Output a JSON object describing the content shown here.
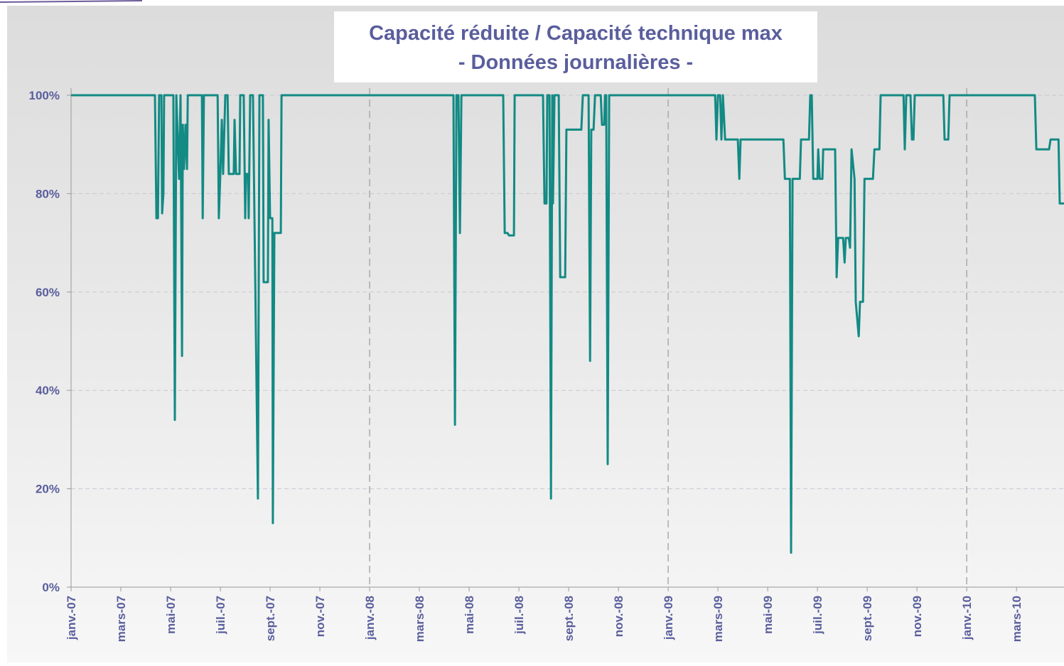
{
  "chart_data": {
    "type": "line",
    "title": [
      "Capacité réduite / Capacité technique max",
      "- Données journalières  -"
    ],
    "x": [
      0,
      3.37,
      3.43,
      3.49,
      3.54,
      3.63,
      3.66,
      3.71,
      3.74,
      4.11,
      4.17,
      4.23,
      4.34,
      4.4,
      4.46,
      4.49,
      4.54,
      4.6,
      4.66,
      4.69,
      5.26,
      5.29,
      5.34,
      5.89,
      5.94,
      6,
      6.06,
      6.11,
      6.2,
      6.29,
      6.34,
      6.54,
      6.57,
      6.63,
      6.77,
      6.8,
      6.94,
      7,
      7.03,
      7.11,
      7.14,
      7.2,
      7.31,
      7.51,
      7.57,
      7.71,
      7.74,
      7.91,
      7.94,
      8,
      8.09,
      8.11,
      8.17,
      8.43,
      8.46,
      15.37,
      15.43,
      15.49,
      15.57,
      15.63,
      15.69,
      17.37,
      17.43,
      17.54,
      17.6,
      17.8,
      17.83,
      18.97,
      19.03,
      19.11,
      19.14,
      19.23,
      19.29,
      19.34,
      19.37,
      19.43,
      19.6,
      19.66,
      19.86,
      19.91,
      20.51,
      20.57,
      20.8,
      20.86,
      20.91,
      21,
      21.06,
      21.29,
      21.34,
      21.43,
      21.46,
      21.51,
      21.57,
      21.63,
      25.89,
      25.94,
      26,
      26.09,
      26.14,
      26.2,
      26.29,
      26.8,
      26.86,
      26.91,
      28.63,
      28.69,
      28.89,
      28.94,
      29,
      29.29,
      29.34,
      29.66,
      29.71,
      29.77,
      29.83,
      30,
      30.03,
      30.09,
      30.2,
      30.23,
      30.71,
      30.77,
      30.83,
      31.03,
      31.09,
      31.14,
      31.26,
      31.31,
      31.37,
      31.49,
      31.54,
      31.66,
      31.71,
      31.83,
      31.89,
      32.23,
      32.29,
      32.49,
      32.54,
      33.46,
      33.51,
      33.57,
      33.74,
      33.8,
      33.86,
      33.91,
      35.06,
      35.11,
      35.26,
      35.31,
      38.74,
      38.8,
      39.31,
      39.37,
      39.69,
      39.74,
      39.91
    ],
    "series": [
      {
        "color": "#138a84",
        "values": [
          100,
          100,
          75,
          75,
          100,
          100,
          76,
          80,
          100,
          100,
          34,
          100,
          83,
          100,
          47,
          94,
          85,
          94,
          85,
          100,
          100,
          75,
          100,
          100,
          75,
          84,
          95,
          84,
          100,
          100,
          84,
          84,
          95,
          84,
          84,
          100,
          100,
          75,
          84,
          84,
          75,
          100,
          100,
          18,
          100,
          100,
          62,
          62,
          95,
          75,
          75,
          13,
          72,
          72,
          100,
          100,
          33,
          100,
          100,
          72,
          100,
          100,
          72,
          72,
          71.5,
          71.5,
          100,
          100,
          78,
          78,
          100,
          100,
          18,
          100,
          78,
          100,
          100,
          63,
          63,
          93,
          93,
          100,
          100,
          46,
          93,
          93,
          100,
          100,
          94,
          94,
          100,
          100,
          25,
          100,
          100,
          91,
          100,
          100,
          91,
          100,
          91,
          91,
          83,
          91,
          91,
          83,
          83,
          7,
          83,
          83,
          91,
          91,
          100,
          100,
          83,
          83,
          89,
          83,
          83,
          89,
          89,
          63,
          71,
          71,
          66,
          71,
          71,
          69,
          89,
          83,
          58,
          51,
          58,
          58,
          83,
          83,
          89,
          89,
          100,
          100,
          89,
          100,
          100,
          91,
          91,
          100,
          100,
          91,
          91,
          100,
          100,
          89,
          89,
          91,
          91,
          78,
          78
        ]
      }
    ],
    "xlim": [
      0,
      39.91
    ],
    "xticks": [
      {
        "value": 0,
        "label": "janv.-07"
      },
      {
        "value": 2,
        "label": "mars-07"
      },
      {
        "value": 4,
        "label": "mai-07"
      },
      {
        "value": 6,
        "label": "juil.-07"
      },
      {
        "value": 8,
        "label": "sept.-07"
      },
      {
        "value": 10,
        "label": "nov.-07"
      },
      {
        "value": 12,
        "label": "janv.-08"
      },
      {
        "value": 14,
        "label": "mars-08"
      },
      {
        "value": 16,
        "label": "mai-08"
      },
      {
        "value": 18,
        "label": "juil.-08"
      },
      {
        "value": 20,
        "label": "sept.-08"
      },
      {
        "value": 22,
        "label": "nov.-08"
      },
      {
        "value": 24,
        "label": "janv.-09"
      },
      {
        "value": 26,
        "label": "mars-09"
      },
      {
        "value": 28,
        "label": "mai-09"
      },
      {
        "value": 30,
        "label": "juil.-09"
      },
      {
        "value": 32,
        "label": "sept.-09"
      },
      {
        "value": 34,
        "label": "nov.-09"
      },
      {
        "value": 36,
        "label": "janv.-10"
      },
      {
        "value": 38,
        "label": "mars-10"
      }
    ],
    "ylim": [
      0,
      100
    ],
    "yticks": [
      {
        "value": 0,
        "label": "0%"
      },
      {
        "value": 20,
        "label": "20%"
      },
      {
        "value": 40,
        "label": "40%"
      },
      {
        "value": 60,
        "label": "60%"
      },
      {
        "value": 80,
        "label": "80%"
      },
      {
        "value": 100,
        "label": "100%"
      }
    ],
    "grid": true
  }
}
